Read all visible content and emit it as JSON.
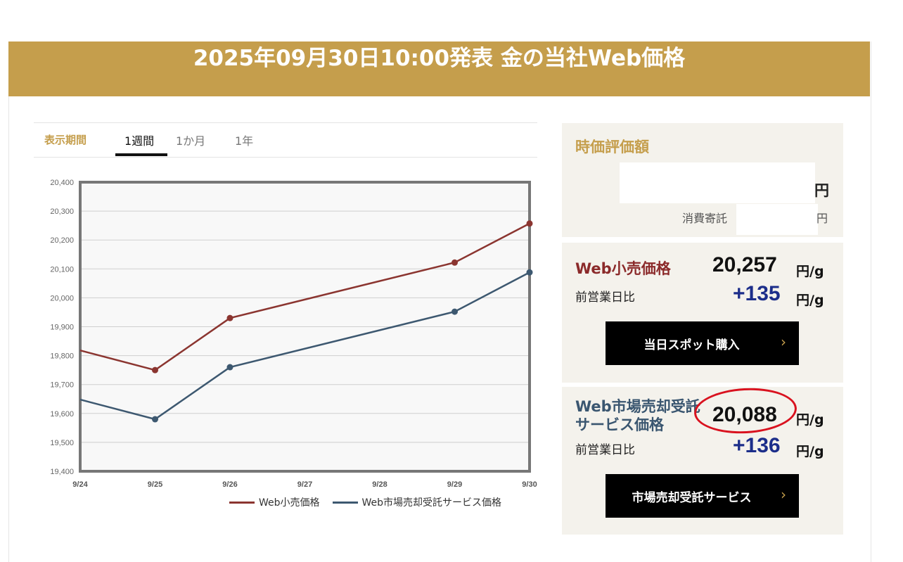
{
  "header": {
    "title": "2025年09月30日10:00発表 金の当社Web価格"
  },
  "tabs": {
    "label": "表示期間",
    "items": [
      {
        "label": "1週間",
        "active": true
      },
      {
        "label": "1か月",
        "active": false
      },
      {
        "label": "1年",
        "active": false
      }
    ]
  },
  "valuation": {
    "title": "時価評価額",
    "yen_unit": "円",
    "consignment_label": "消費寄託",
    "consignment_unit": "円"
  },
  "retail": {
    "title": "Web小売価格",
    "price": "20,257",
    "unit": "円/g",
    "diff_label": "前営業日比",
    "diff": "+135",
    "diff_unit": "円/g",
    "button": "当日スポット購入",
    "chevron": "›",
    "title_color": "#8b2a2a"
  },
  "market": {
    "title_line1": "Web市場売却受託",
    "title_line2": "サービス価格",
    "price": "20,088",
    "unit": "円/g",
    "diff_label": "前営業日比",
    "diff": "+136",
    "diff_unit": "円/g",
    "button": "市場売却受託サービス",
    "chevron": "›",
    "title_color": "#3a5670"
  },
  "chart_data": {
    "type": "line",
    "x": [
      "9/24",
      "9/25",
      "9/26",
      "9/27",
      "9/28",
      "9/29",
      "9/30"
    ],
    "series": [
      {
        "name": "Web小売価格",
        "color": "#8b3530",
        "values": [
          19818,
          19750,
          19930,
          null,
          null,
          20122,
          20257
        ]
      },
      {
        "name": "Web市場売却受託サービス価格",
        "color": "#3d5870",
        "values": [
          19648,
          19580,
          19760,
          null,
          null,
          19952,
          20088
        ]
      }
    ],
    "yticks": [
      "20,400",
      "20,300",
      "20,200",
      "20,100",
      "20,000",
      "19,900",
      "19,800",
      "19,700",
      "19,600",
      "19,500",
      "19,400"
    ],
    "ylim": [
      19400,
      20400
    ],
    "grid": true,
    "legend": "bottom-right"
  }
}
